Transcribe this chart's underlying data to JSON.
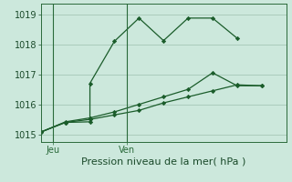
{
  "xlabel": "Pression niveau de la mer( hPa )",
  "background_color": "#cce8dc",
  "grid_color": "#aaccbb",
  "line_color": "#1a5c2a",
  "ylim": [
    1014.75,
    1019.35
  ],
  "yticks": [
    1015,
    1016,
    1017,
    1018,
    1019
  ],
  "xlim": [
    0,
    10
  ],
  "jeu_x": 0.5,
  "ven_x": 3.5,
  "line1_x": [
    0,
    1,
    2,
    2,
    3,
    4,
    5,
    6,
    7,
    8
  ],
  "line1_y": [
    1015.08,
    1015.4,
    1015.42,
    1016.7,
    1018.1,
    1018.87,
    1018.12,
    1018.87,
    1018.87,
    1018.2
  ],
  "line2_x": [
    0,
    1,
    2,
    3,
    4,
    5,
    6,
    7,
    8,
    9
  ],
  "line2_y": [
    1015.08,
    1015.4,
    1015.5,
    1015.65,
    1015.8,
    1016.05,
    1016.25,
    1016.45,
    1016.65,
    1016.62
  ],
  "line3_x": [
    0,
    1,
    2,
    3,
    4,
    5,
    6,
    7,
    8,
    9
  ],
  "line3_y": [
    1015.08,
    1015.42,
    1015.55,
    1015.75,
    1016.0,
    1016.25,
    1016.5,
    1017.05,
    1016.62,
    1016.62
  ],
  "vline_color": "#2a6a3a",
  "label_fontsize": 7,
  "xlabel_fontsize": 8
}
